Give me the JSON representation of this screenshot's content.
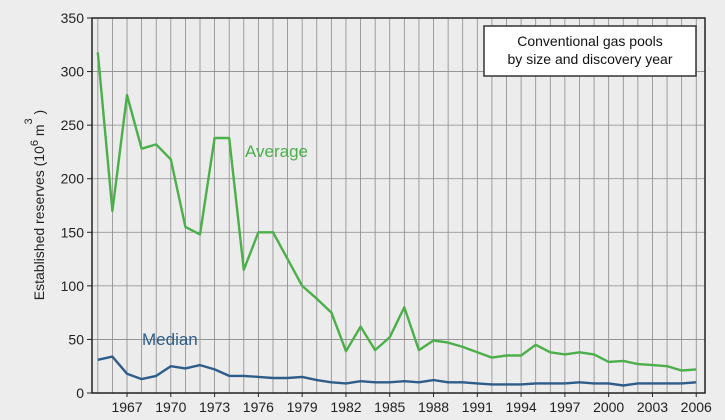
{
  "chart_data": {
    "type": "line",
    "title": "Conventional gas pools by size and discovery year",
    "title_lines": [
      "Conventional gas pools",
      "by size and discovery year"
    ],
    "ylabel": "Established reserves (10⁶ m³)",
    "ylabel_parts": {
      "base": "Established reserves (10",
      "exp1": "6",
      "mid": " m",
      "exp2": "3",
      "end": " )"
    },
    "xlabel": "",
    "xlim": [
      1964.6,
      2006.6
    ],
    "ylim": [
      0,
      350
    ],
    "yticks": [
      0,
      50,
      100,
      150,
      200,
      250,
      300,
      350
    ],
    "xticks": [
      1967,
      1970,
      1973,
      1976,
      1979,
      1982,
      1985,
      1988,
      1991,
      1994,
      1997,
      2000,
      2003,
      2006
    ],
    "x_minor_step": 1,
    "grid": true,
    "x": [
      1965,
      1966,
      1967,
      1968,
      1969,
      1970,
      1971,
      1972,
      1973,
      1974,
      1975,
      1976,
      1977,
      1978,
      1979,
      1980,
      1981,
      1982,
      1983,
      1984,
      1985,
      1986,
      1987,
      1988,
      1989,
      1990,
      1991,
      1992,
      1993,
      1994,
      1995,
      1996,
      1997,
      1998,
      1999,
      2000,
      2001,
      2002,
      2003,
      2004,
      2005,
      2006
    ],
    "series": [
      {
        "name": "Average",
        "color": "#4caf4a",
        "values": [
          318,
          170,
          278,
          228,
          232,
          218,
          155,
          148,
          238,
          238,
          115,
          150,
          150,
          125,
          100,
          88,
          75,
          39,
          62,
          40,
          52,
          80,
          40,
          49,
          47,
          43,
          38,
          33,
          35,
          35,
          45,
          38,
          36,
          38,
          36,
          29,
          30,
          27,
          26,
          25,
          21,
          22
        ]
      },
      {
        "name": "Median",
        "color": "#2f5d8a",
        "values": [
          31,
          34,
          18,
          13,
          16,
          25,
          23,
          26,
          22,
          16,
          16,
          15,
          14,
          14,
          15,
          12,
          10,
          9,
          11,
          10,
          10,
          11,
          10,
          12,
          10,
          10,
          9,
          8,
          8,
          8,
          9,
          9,
          9,
          10,
          9,
          9,
          7,
          9,
          9,
          9,
          9,
          10
        ]
      }
    ],
    "annotations": [
      {
        "text": "Average",
        "series": "Average"
      },
      {
        "text": "Median",
        "series": "Median"
      }
    ]
  }
}
